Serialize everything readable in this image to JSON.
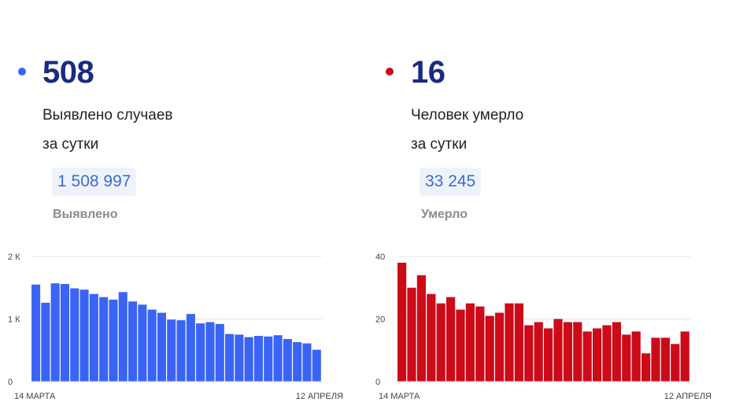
{
  "colors": {
    "cases": "#3a64f5",
    "deaths": "#cc0a18"
  },
  "cases": {
    "daily_value": "508",
    "desc_line1": "Выявлено случаев",
    "desc_line2": "за сутки",
    "total": "1 508 997",
    "total_label": "Выявлено"
  },
  "deaths": {
    "daily_value": "16",
    "desc_line1": "Человек умерло",
    "desc_line2": "за сутки",
    "total": "33 245",
    "total_label": "Умерло"
  },
  "chart_data": [
    {
      "type": "bar",
      "ylim": [
        0,
        2000
      ],
      "yticks": [
        {
          "value": 0,
          "label": "0"
        },
        {
          "value": 1000,
          "label": "1 К"
        },
        {
          "value": 2000,
          "label": "2 К"
        }
      ],
      "x_start_label": "14 МАРТА",
      "x_end_label": "12 АПРЕЛЯ",
      "values": [
        1550,
        1260,
        1570,
        1560,
        1490,
        1470,
        1400,
        1350,
        1310,
        1430,
        1280,
        1230,
        1150,
        1100,
        990,
        980,
        1080,
        930,
        950,
        920,
        760,
        750,
        710,
        730,
        720,
        740,
        680,
        630,
        610,
        508
      ]
    },
    {
      "type": "bar",
      "ylim": [
        0,
        40
      ],
      "yticks": [
        {
          "value": 0,
          "label": "0"
        },
        {
          "value": 20,
          "label": "20"
        },
        {
          "value": 40,
          "label": "40"
        }
      ],
      "x_start_label": "14 МАРТА",
      "x_end_label": "12 АПРЕЛЯ",
      "values": [
        38,
        30,
        34,
        28,
        25,
        27,
        23,
        25,
        24,
        21,
        22,
        25,
        25,
        18,
        19,
        17,
        20,
        19,
        19,
        16,
        17,
        18,
        19,
        15,
        16,
        9,
        14,
        14,
        12,
        16
      ]
    }
  ]
}
